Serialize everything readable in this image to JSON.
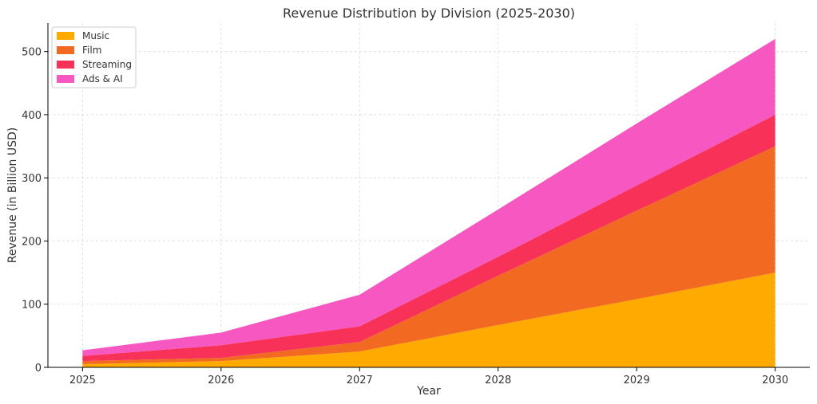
{
  "chart_data": {
    "type": "area",
    "stacked": true,
    "title": "Revenue Distribution by Division (2025-2030)",
    "xlabel": "Year",
    "ylabel": "Revenue (in Billion USD)",
    "x": [
      2025,
      2026,
      2027,
      2028,
      2029,
      2030
    ],
    "x_tick_labels": [
      "2025",
      "2026",
      "2027",
      "2028",
      "2029",
      "2030"
    ],
    "y_ticks": [
      0,
      100,
      200,
      300,
      400,
      500
    ],
    "y_tick_labels": [
      "0",
      "100",
      "200",
      "300",
      "400",
      "500"
    ],
    "xlim": [
      2024.75,
      2030.25
    ],
    "ylim": [
      0,
      545
    ],
    "grid": true,
    "legend_position": "upper-left",
    "series": [
      {
        "name": "Music",
        "color": "#FFAA00",
        "values": [
          5,
          10,
          25,
          67,
          108,
          150
        ]
      },
      {
        "name": "Film",
        "color": "#F26A21",
        "values": [
          5,
          5,
          15,
          78,
          140,
          200
        ]
      },
      {
        "name": "Streaming",
        "color": "#F73157",
        "values": [
          8,
          20,
          25,
          30,
          40,
          50
        ]
      },
      {
        "name": "Ads & AI",
        "color": "#F757C0",
        "values": [
          9,
          20,
          50,
          75,
          98,
          120
        ]
      }
    ]
  }
}
